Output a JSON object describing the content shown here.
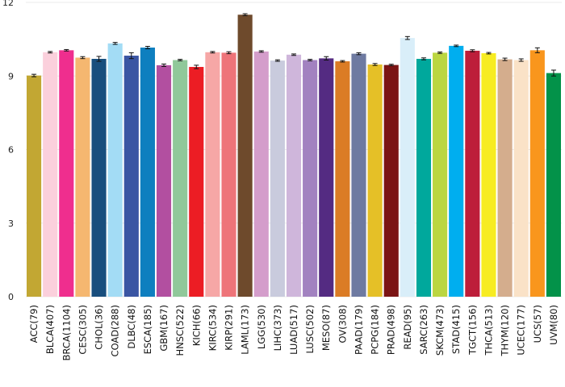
{
  "chart_data": {
    "type": "bar",
    "title": "",
    "xlabel": "",
    "ylabel": "",
    "ylim": [
      0,
      12.1
    ],
    "yticks": [
      0,
      3,
      6,
      9,
      12
    ],
    "grid": true,
    "categories": [
      "ACC(79)",
      "BLCA(407)",
      "BRCA(1104)",
      "CESC(305)",
      "CHOL(36)",
      "COAD(288)",
      "DLBC(48)",
      "ESCA(185)",
      "GBM(167)",
      "HNSC(522)",
      "KICH(66)",
      "KIRC(534)",
      "KIRP(291)",
      "LAML(173)",
      "LGG(530)",
      "LIHC(373)",
      "LUAD(517)",
      "LUSC(502)",
      "MESO(87)",
      "OV(308)",
      "PAAD(179)",
      "PCPG(184)",
      "PRAD(498)",
      "READ(95)",
      "SARC(263)",
      "SKCM(473)",
      "STAD(415)",
      "TGCT(156)",
      "THCA(513)",
      "THYM(120)",
      "UCEC(177)",
      "UCS(57)",
      "UVM(80)"
    ],
    "values": [
      9.02,
      9.97,
      10.05,
      9.75,
      9.7,
      10.33,
      9.83,
      10.16,
      9.44,
      9.65,
      9.37,
      9.97,
      9.95,
      11.5,
      10.0,
      9.63,
      9.87,
      9.65,
      9.72,
      9.6,
      9.91,
      9.47,
      9.45,
      10.55,
      9.7,
      9.95,
      10.23,
      10.03,
      9.93,
      9.68,
      9.65,
      10.05,
      9.12
    ],
    "errors": [
      0.05,
      0.03,
      0.03,
      0.04,
      0.1,
      0.04,
      0.12,
      0.05,
      0.05,
      0.03,
      0.07,
      0.03,
      0.04,
      0.04,
      0.03,
      0.03,
      0.03,
      0.03,
      0.07,
      0.03,
      0.04,
      0.04,
      0.03,
      0.06,
      0.04,
      0.03,
      0.03,
      0.04,
      0.03,
      0.05,
      0.05,
      0.1,
      0.12
    ],
    "colors": [
      "#c2a733",
      "#fbd0dc",
      "#ef2e8e",
      "#f5b770",
      "#184e7d",
      "#a3dcf5",
      "#3a55a3",
      "#0e7fbf",
      "#b24fa0",
      "#90c89a",
      "#ec1d24",
      "#f6a7a6",
      "#ee7479",
      "#6e4a2c",
      "#d49dcb",
      "#c9cbdd",
      "#cfb6db",
      "#a282c0",
      "#542b82",
      "#db7c25",
      "#6e7aa1",
      "#e5c027",
      "#7b1414",
      "#d9eef9",
      "#00a89c",
      "#bbd641",
      "#00aeef",
      "#bd1e3a",
      "#f7ec21",
      "#d4ad8d",
      "#fae2c7",
      "#f9961d",
      "#039249"
    ]
  }
}
